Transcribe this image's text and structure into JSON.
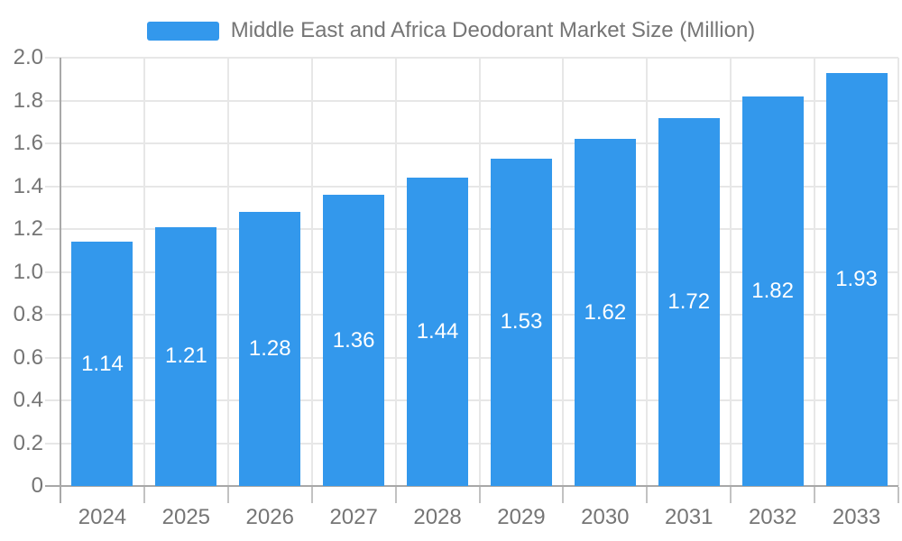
{
  "chart_data": {
    "type": "bar",
    "title": "Middle East and Africa Deodorant Market Size (Million)",
    "categories": [
      "2024",
      "2025",
      "2026",
      "2027",
      "2028",
      "2029",
      "2030",
      "2031",
      "2032",
      "2033"
    ],
    "values": [
      1.14,
      1.21,
      1.28,
      1.36,
      1.44,
      1.53,
      1.62,
      1.72,
      1.82,
      1.93
    ],
    "value_labels": [
      "1.14",
      "1.21",
      "1.28",
      "1.36",
      "1.44",
      "1.53",
      "1.62",
      "1.72",
      "1.82",
      "1.93"
    ],
    "xlabel": "",
    "ylabel": "",
    "ylim": [
      0,
      2.0
    ],
    "ytick_step": 0.2,
    "ytick_labels": [
      "0",
      "0.2",
      "0.4",
      "0.6",
      "0.8",
      "1.0",
      "1.2",
      "1.4",
      "1.6",
      "1.8",
      "2.0"
    ],
    "grid": "horizontal and vertical gridlines on",
    "legend_position": "top-center",
    "colors": {
      "bar": "#3398EC",
      "value_label": "#FFFFFF",
      "axis": "#A8A8A8",
      "gridline": "#E7E7E7",
      "tick": "#C2C2C2",
      "text": "#757575"
    }
  }
}
